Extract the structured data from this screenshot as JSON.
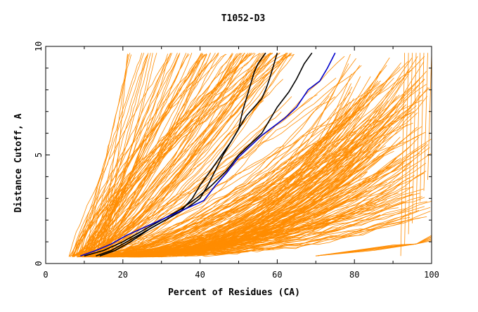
{
  "chart_data": {
    "type": "line",
    "title": "T1052-D3",
    "xlabel": "Percent of Residues (CA)",
    "ylabel": "Distance Cutoff, A",
    "xlim": [
      0,
      100
    ],
    "ylim": [
      0,
      10
    ],
    "x_ticks": [
      0,
      20,
      40,
      60,
      80,
      100
    ],
    "y_ticks": [
      0,
      5,
      10
    ],
    "grid": false,
    "colors": {
      "background_series": "#ff8c00",
      "highlight_black": "#000000",
      "highlight_blue": "#0000cc",
      "axis": "#000000"
    },
    "highlight_series": [
      {
        "name": "black-1",
        "color": "#000000",
        "x": [
          13,
          17,
          20,
          25,
          30,
          35,
          38,
          40,
          42,
          44,
          46,
          48,
          50,
          51,
          52,
          53,
          54,
          55,
          57
        ],
        "y": [
          0.35,
          0.6,
          0.9,
          1.4,
          1.9,
          2.4,
          3.0,
          3.6,
          4.1,
          4.6,
          5.1,
          5.6,
          6.2,
          7.0,
          7.6,
          8.2,
          8.8,
          9.2,
          9.7
        ]
      },
      {
        "name": "black-2",
        "color": "#000000",
        "x": [
          10,
          15,
          20,
          25,
          30,
          35,
          39,
          43,
          47,
          50,
          53,
          56,
          58,
          60,
          63,
          65,
          67,
          69
        ],
        "y": [
          0.35,
          0.6,
          1.0,
          1.5,
          2.0,
          2.5,
          3.0,
          3.6,
          4.3,
          5.0,
          5.5,
          6.0,
          6.6,
          7.2,
          7.9,
          8.5,
          9.2,
          9.7
        ]
      },
      {
        "name": "black-3",
        "color": "#000000",
        "x": [
          14,
          18,
          22,
          27,
          32,
          37,
          40,
          42,
          44,
          46,
          48,
          50,
          52,
          54,
          56,
          57,
          58,
          60
        ],
        "y": [
          0.35,
          0.6,
          1.0,
          1.6,
          2.1,
          2.6,
          3.0,
          3.6,
          4.3,
          5.0,
          5.6,
          6.2,
          6.8,
          7.2,
          7.6,
          8.0,
          8.5,
          9.7
        ]
      },
      {
        "name": "blue",
        "color": "#0000cc",
        "x": [
          9,
          13,
          17,
          21,
          26,
          31,
          36,
          41,
          44,
          47,
          50,
          53,
          56,
          59,
          62,
          65,
          68,
          71,
          73,
          75
        ],
        "y": [
          0.35,
          0.6,
          0.9,
          1.3,
          1.7,
          2.1,
          2.5,
          2.9,
          3.6,
          4.2,
          4.9,
          5.4,
          5.9,
          6.3,
          6.7,
          7.2,
          8.0,
          8.4,
          9.0,
          9.7
        ]
      }
    ],
    "background_series_description_count": 300
  }
}
